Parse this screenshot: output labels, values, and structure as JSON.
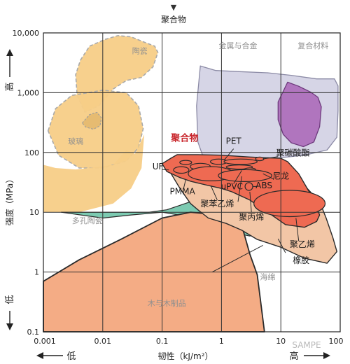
{
  "chart_data": {
    "type": "region",
    "top_marker": "▼",
    "top_label": "聚合物",
    "x_scale": "log",
    "y_scale": "log",
    "xlim": [
      0.001,
      100
    ],
    "ylim": [
      0.1,
      10000
    ],
    "x_ticks": [
      {
        "value": 0.001,
        "label": "0.001"
      },
      {
        "value": 0.01,
        "label": "0.01"
      },
      {
        "value": 0.1,
        "label": "0.1"
      },
      {
        "value": 1,
        "label": "1"
      },
      {
        "value": 10,
        "label": "10"
      },
      {
        "value": 100,
        "label": "100"
      }
    ],
    "y_ticks": [
      {
        "value": 0.1,
        "label": "0.1"
      },
      {
        "value": 1,
        "label": "1"
      },
      {
        "value": 10,
        "label": "10"
      },
      {
        "value": 100,
        "label": "100"
      },
      {
        "value": 1000,
        "label": "1,000"
      },
      {
        "value": 10000,
        "label": "10,000"
      }
    ],
    "xlabel": "韧性（kJ/m²）",
    "x_low": "低",
    "x_high": "高",
    "ylabel": "强度（MPa）",
    "y_high": "高",
    "y_low": "低",
    "grid": true,
    "colors": {
      "ceramic": "#f7ce87",
      "metal": "#d3d1e4",
      "composite": "#ad6cbb",
      "polymer_field": "#f2c6a6",
      "polymer": "#ee6a52",
      "foam": "#7ccab1",
      "wood": "#f4ac85",
      "highlight": "#c8242a"
    },
    "regions": [
      {
        "id": "ceramic",
        "label": "陶瓷",
        "label_x": 0.042,
        "label_y": 4500,
        "outline": [
          [
            0.0042,
            3500
          ],
          [
            0.006,
            6000
          ],
          [
            0.011,
            7800
          ],
          [
            0.018,
            9000
          ],
          [
            0.03,
            8600
          ],
          [
            0.05,
            7000
          ],
          [
            0.075,
            6000
          ],
          [
            0.085,
            4700
          ],
          [
            0.07,
            2700
          ],
          [
            0.045,
            1800
          ],
          [
            0.025,
            1600
          ],
          [
            0.015,
            1150
          ],
          [
            0.0085,
            600
          ],
          [
            0.005,
            470
          ],
          [
            0.0037,
            900
          ],
          [
            0.0035,
            2000
          ]
        ]
      },
      {
        "id": "glass",
        "label": "玻璃",
        "label_x": 0.0035,
        "label_y": 140,
        "outline": [
          [
            0.0012,
            230
          ],
          [
            0.0016,
            540
          ],
          [
            0.003,
            900
          ],
          [
            0.01,
            1100
          ],
          [
            0.025,
            1000
          ],
          [
            0.04,
            600
          ],
          [
            0.048,
            250
          ],
          [
            0.04,
            120
          ],
          [
            0.025,
            72
          ],
          [
            0.01,
            55
          ],
          [
            0.004,
            55
          ],
          [
            0.0018,
            90
          ]
        ]
      },
      {
        "id": "glass-spot",
        "label": "",
        "label_x": null,
        "label_y": null,
        "outline": [
          [
            0.0045,
            310
          ],
          [
            0.006,
            430
          ],
          [
            0.008,
            470
          ],
          [
            0.0095,
            380
          ],
          [
            0.009,
            280
          ],
          [
            0.007,
            245
          ],
          [
            0.0052,
            265
          ]
        ]
      },
      {
        "id": "porous-ceramic",
        "label": "多孔陶瓷",
        "label_x": 0.0055,
        "label_y": 6.5,
        "outline": [
          [
            0.001,
            62
          ],
          [
            0.0016,
            55
          ],
          [
            0.0035,
            52
          ],
          [
            0.008,
            57
          ],
          [
            0.015,
            62
          ],
          [
            0.025,
            110
          ],
          [
            0.035,
            95
          ],
          [
            0.05,
            200
          ],
          [
            0.045,
            55
          ],
          [
            0.03,
            25
          ],
          [
            0.015,
            14
          ],
          [
            0.004,
            10
          ],
          [
            0.001,
            10
          ]
        ]
      },
      {
        "id": "metal",
        "label": "金属与合金",
        "label_x": 1.9,
        "label_y": 5500,
        "outline": [
          [
            0.44,
            2800
          ],
          [
            0.8,
            2350
          ],
          [
            2,
            2250
          ],
          [
            6,
            2150
          ],
          [
            15,
            1950
          ],
          [
            40,
            1700
          ],
          [
            80,
            1700
          ],
          [
            92,
            1300
          ],
          [
            92,
            500
          ],
          [
            88,
            180
          ],
          [
            60,
            110
          ],
          [
            25,
            90
          ],
          [
            8,
            80
          ],
          [
            2,
            75
          ],
          [
            0.5,
            80
          ],
          [
            0.4,
            150
          ],
          [
            0.38,
            600
          ]
        ]
      },
      {
        "id": "composite",
        "label": "复合材料",
        "label_x": 35,
        "label_y": 5500,
        "outline": [
          [
            9,
            700
          ],
          [
            13,
            1500
          ],
          [
            20,
            1280
          ],
          [
            32,
            1020
          ],
          [
            42,
            840
          ],
          [
            48,
            580
          ],
          [
            45,
            270
          ],
          [
            36,
            150
          ],
          [
            24,
            125
          ],
          [
            15,
            145
          ],
          [
            11,
            200
          ],
          [
            9,
            350
          ]
        ]
      },
      {
        "id": "foam",
        "label": "海绵",
        "label_x": 6,
        "label_y": 0.75,
        "outline": [
          [
            0.002,
            10
          ],
          [
            0.06,
            10
          ],
          [
            0.12,
            11
          ],
          [
            0.7,
            20
          ],
          [
            3,
            28
          ],
          [
            20,
            15
          ],
          [
            9,
            7
          ],
          [
            3,
            4
          ],
          [
            1,
            5
          ],
          [
            0.4,
            8
          ],
          [
            0.1,
            10
          ],
          [
            0.03,
            9
          ],
          [
            0.01,
            8
          ],
          [
            0.002,
            10
          ]
        ]
      },
      {
        "id": "wood",
        "label": "木与木制品",
        "label_x": 0.12,
        "label_y": 0.27,
        "outline": [
          [
            0.001,
            0.7
          ],
          [
            0.004,
            1.6
          ],
          [
            0.02,
            3.5
          ],
          [
            0.1,
            8
          ],
          [
            0.3,
            10
          ],
          [
            1,
            9
          ],
          [
            2.2,
            6
          ],
          [
            3,
            2
          ],
          [
            4,
            0.9
          ],
          [
            5.3,
            0.1
          ],
          [
            0.001,
            0.1
          ]
        ]
      },
      {
        "id": "polymer-field",
        "label": "",
        "label_x": null,
        "label_y": null,
        "outline": [
          [
            0.16,
            70
          ],
          [
            0.35,
            56
          ],
          [
            0.8,
            57
          ],
          [
            2,
            58
          ],
          [
            5,
            56
          ],
          [
            10,
            46
          ],
          [
            25,
            28
          ],
          [
            45,
            15
          ],
          [
            58,
            8
          ],
          [
            75,
            3.8
          ],
          [
            88,
            2.2
          ],
          [
            60,
            1.4
          ],
          [
            25,
            1.7
          ],
          [
            10,
            2.6
          ],
          [
            4,
            3.5
          ],
          [
            2.2,
            5
          ],
          [
            1.2,
            6.5
          ],
          [
            0.6,
            8
          ],
          [
            0.4,
            11
          ],
          [
            0.3,
            14
          ],
          [
            0.2,
            25
          ],
          [
            0.14,
            45
          ]
        ]
      },
      {
        "id": "polymer",
        "label": "",
        "label_x": null,
        "label_y": null,
        "outline": [
          [
            0.1,
            65
          ],
          [
            0.14,
            80
          ],
          [
            0.18,
            92
          ],
          [
            0.4,
            92
          ],
          [
            1,
            90
          ],
          [
            3,
            84
          ],
          [
            5,
            82
          ],
          [
            10,
            80
          ],
          [
            13,
            70
          ],
          [
            20,
            44
          ],
          [
            30,
            22
          ],
          [
            38,
            14
          ],
          [
            45,
            9
          ],
          [
            40,
            7
          ],
          [
            25,
            5.6
          ],
          [
            12,
            6.2
          ],
          [
            6,
            10
          ],
          [
            3,
            16
          ],
          [
            1.5,
            22
          ],
          [
            1,
            25
          ],
          [
            0.6,
            28
          ],
          [
            0.3,
            33
          ],
          [
            0.2,
            38
          ],
          [
            0.12,
            48
          ]
        ]
      }
    ],
    "ellipses": [
      {
        "cx": 0.21,
        "cy": 51,
        "rx": 0.13,
        "ry": 0.055
      },
      {
        "cx": 0.25,
        "cy": 68,
        "rx": 0.1,
        "ry": 0.035
      },
      {
        "cx": 0.44,
        "cy": 58,
        "rx": 0.17,
        "ry": 0.055
      },
      {
        "cx": 0.66,
        "cy": 44,
        "rx": 0.38,
        "ry": 0.12
      },
      {
        "cx": 0.9,
        "cy": 70,
        "rx": 0.14,
        "ry": 0.045
      },
      {
        "cx": 2.1,
        "cy": 70,
        "rx": 0.28,
        "ry": 0.045
      },
      {
        "cx": 2.0,
        "cy": 57,
        "rx": 0.22,
        "ry": 0.035
      },
      {
        "cx": 3.0,
        "cy": 51,
        "rx": 0.1,
        "ry": 0.035
      },
      {
        "cx": 2.9,
        "cy": 27,
        "rx": 0.065,
        "ry": 0.065
      },
      {
        "cx": 2.5,
        "cy": 41,
        "rx": 0.45,
        "ry": 0.1
      },
      {
        "cx": 4.4,
        "cy": 78,
        "rx": 0.07,
        "ry": 0.03
      },
      {
        "cx": 14,
        "cy": 14,
        "rx": 0.6,
        "ry": 0.22
      }
    ],
    "labels": [
      {
        "text": "聚合物",
        "x": 0.24,
        "y": 155,
        "color": "#c8242a",
        "bold": true
      },
      {
        "text": "PET",
        "x": 1.6,
        "y": 140
      },
      {
        "text": "聚碳酸酯",
        "x": 16,
        "y": 88
      },
      {
        "text": "UF",
        "x": 0.085,
        "y": 52
      },
      {
        "text": "尼龙",
        "x": 10,
        "y": 36
      },
      {
        "text": "PMMA",
        "x": 0.22,
        "y": 20
      },
      {
        "text": "uPVC",
        "x": 1.5,
        "y": 24
      },
      {
        "text": "ABS",
        "x": 5.2,
        "y": 25
      },
      {
        "text": "聚苯乙烯",
        "x": 0.85,
        "y": 12.5
      },
      {
        "text": "聚丙烯",
        "x": 3.2,
        "y": 7.5
      },
      {
        "text": "聚乙烯",
        "x": 23,
        "y": 2.6
      },
      {
        "text": "橡胶",
        "x": 22,
        "y": 1.4
      }
    ],
    "leaders": [
      [
        [
          1.6,
          115
        ],
        [
          1.1,
          74
        ]
      ],
      [
        [
          9,
          85
        ],
        [
          5,
          78
        ]
      ],
      [
        [
          0.1,
          52
        ],
        [
          0.13,
          51
        ]
      ],
      [
        [
          0.23,
          25
        ],
        [
          0.25,
          35
        ]
      ],
      [
        [
          7.5,
          36
        ],
        [
          5,
          44
        ]
      ],
      [
        [
          1.6,
          30
        ],
        [
          2.2,
          50
        ]
      ],
      [
        [
          4,
          27
        ],
        [
          3.3,
          27
        ]
      ],
      [
        [
          0.85,
          16
        ],
        [
          0.66,
          28
        ]
      ],
      [
        [
          3.2,
          10
        ],
        [
          3,
          22
        ]
      ],
      [
        [
          20,
          3.3
        ],
        [
          18,
          8
        ]
      ],
      [
        [
          1.9,
          15
        ],
        [
          2.2,
          40
        ]
      ],
      [
        [
          0.7,
          1.0
        ],
        [
          5,
          2.8
        ]
      ],
      [
        [
          12,
          2.1
        ],
        [
          9,
          3.6
        ]
      ]
    ]
  },
  "watermark": "SAMPE"
}
